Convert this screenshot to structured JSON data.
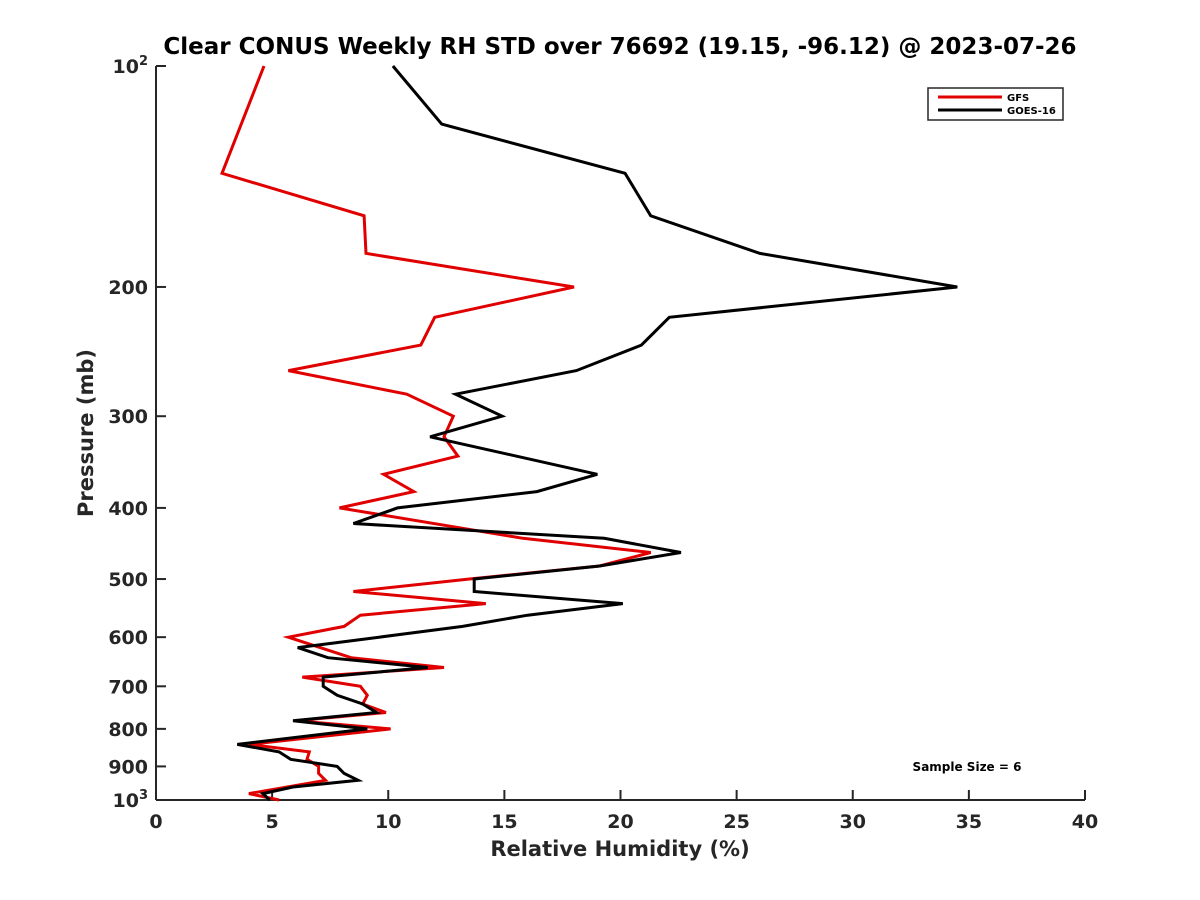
{
  "chart_data": {
    "type": "line",
    "title": "Clear CONUS Weekly RH STD over 76692 (19.15, -96.12) @ 2023-07-26",
    "xlabel": "Relative Humidity (%)",
    "ylabel": "Pressure (mb)",
    "xlim": [
      0,
      40
    ],
    "ylim": [
      100,
      1000
    ],
    "yscale": "log",
    "y_inverted": true,
    "grid": false,
    "x_ticks": [
      0,
      5,
      10,
      15,
      20,
      25,
      30,
      35,
      40
    ],
    "x_tick_labels": [
      "0",
      "5",
      "10",
      "15",
      "20",
      "25",
      "30",
      "35",
      "40"
    ],
    "y_ticks": [
      100,
      200,
      300,
      400,
      500,
      600,
      700,
      800,
      900,
      1000
    ],
    "y_tick_labels": [
      {
        "base": "10",
        "exp": "2"
      },
      {
        "base": "200"
      },
      {
        "base": "300"
      },
      {
        "base": "400"
      },
      {
        "base": "500"
      },
      {
        "base": "600"
      },
      {
        "base": "700"
      },
      {
        "base": "800"
      },
      {
        "base": "900"
      },
      {
        "base": "10",
        "exp": "3"
      }
    ],
    "legend_position": "top-right",
    "annotation": "Sample Size = 6",
    "series": [
      {
        "name": "GFS",
        "color": "#e00000",
        "pressure": [
          100,
          140,
          160,
          180,
          200,
          220,
          240,
          260,
          280,
          300,
          320,
          340,
          360,
          380,
          400,
          440,
          460,
          480,
          500,
          520,
          540,
          560,
          580,
          600,
          640,
          660,
          680,
          700,
          720,
          740,
          760,
          780,
          800,
          840,
          860,
          880,
          900,
          920,
          940,
          980,
          1000
        ],
        "values": [
          4.65,
          2.84,
          8.96,
          9.04,
          18.0,
          12.0,
          11.4,
          5.7,
          10.8,
          12.8,
          12.4,
          13.0,
          9.8,
          11.1,
          7.9,
          15.8,
          21.3,
          19.1,
          13.5,
          8.5,
          14.2,
          8.8,
          8.1,
          5.7,
          8.4,
          12.4,
          6.3,
          8.8,
          9.1,
          8.9,
          9.9,
          6.0,
          10.1,
          4.0,
          6.6,
          6.5,
          7.0,
          7.0,
          7.3,
          4.0,
          5.3
        ]
      },
      {
        "name": "GOES-16",
        "color": "#000000",
        "pressure": [
          100,
          120,
          140,
          160,
          180,
          200,
          220,
          240,
          260,
          280,
          300,
          320,
          360,
          380,
          400,
          420,
          440,
          460,
          480,
          500,
          520,
          540,
          560,
          580,
          600,
          620,
          640,
          660,
          680,
          700,
          720,
          740,
          760,
          780,
          800,
          840,
          860,
          880,
          900,
          920,
          940,
          960,
          980,
          1000
        ],
        "values": [
          10.2,
          12.3,
          20.2,
          21.3,
          26.0,
          34.5,
          22.1,
          20.9,
          18.1,
          12.9,
          14.9,
          11.8,
          19.0,
          16.4,
          10.4,
          8.5,
          19.3,
          22.6,
          19.1,
          13.7,
          13.7,
          20.1,
          16.0,
          13.2,
          9.6,
          6.1,
          7.4,
          11.7,
          7.2,
          7.2,
          7.8,
          8.9,
          9.5,
          5.9,
          9.1,
          3.5,
          5.3,
          5.8,
          7.8,
          8.1,
          8.7,
          5.9,
          4.6,
          4.9
        ]
      }
    ]
  }
}
